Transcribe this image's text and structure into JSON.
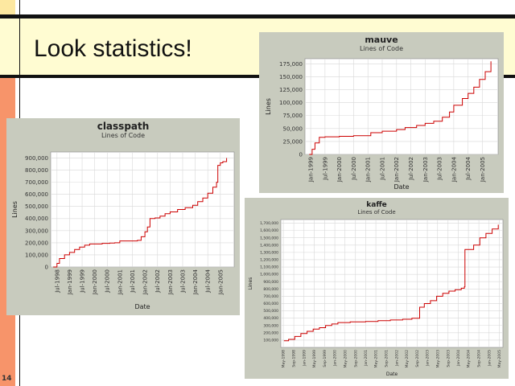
{
  "slide": {
    "title": "Look statistics!",
    "page_number": "14"
  },
  "chart_data": [
    {
      "id": "classpath",
      "type": "line",
      "title": "classpath",
      "subtitle": "Lines of Code",
      "xlabel": "Date",
      "ylabel": "Lines",
      "ylim": [
        0,
        950000
      ],
      "yticks": [
        0,
        100000,
        200000,
        300000,
        400000,
        500000,
        600000,
        700000,
        800000,
        900000
      ],
      "ytick_labels": [
        "0",
        "100,000",
        "200,000",
        "300,000",
        "400,000",
        "500,000",
        "600,000",
        "700,000",
        "800,000",
        "900,000"
      ],
      "xlim": [
        1998.25,
        2005.55
      ],
      "xticks": [
        1998.5,
        1999.0,
        1999.5,
        2000.0,
        2000.5,
        2001.0,
        2001.5,
        2002.0,
        2002.5,
        2003.0,
        2003.5,
        2004.0,
        2004.5,
        2005.0
      ],
      "xtick_labels": [
        "Jul-1998",
        "Jan-1999",
        "Jul-1999",
        "Jan-2000",
        "Jul-2000",
        "Jan-2001",
        "Jul-2001",
        "Jan-2002",
        "Jul-2002",
        "Jan-2003",
        "Jul-2003",
        "Jan-2004",
        "Jul-2004",
        "Jan-2005"
      ],
      "grid": true,
      "series": [
        {
          "color": "#cc0000",
          "x": [
            1998.35,
            1998.5,
            1998.6,
            1998.8,
            1999.0,
            1999.2,
            1999.4,
            1999.6,
            1999.8,
            2000.0,
            2000.3,
            2000.6,
            2000.8,
            2001.0,
            2001.2,
            2001.5,
            2001.7,
            2001.85,
            2002.0,
            2002.1,
            2002.2,
            2002.4,
            2002.6,
            2002.8,
            2003.0,
            2003.3,
            2003.6,
            2003.9,
            2004.1,
            2004.3,
            2004.5,
            2004.7,
            2004.85,
            2004.9,
            2005.0,
            2005.1,
            2005.25
          ],
          "y": [
            0,
            30000,
            70000,
            100000,
            120000,
            145000,
            165000,
            180000,
            190000,
            190000,
            195000,
            197000,
            200000,
            215000,
            215000,
            215000,
            220000,
            250000,
            290000,
            330000,
            400000,
            405000,
            420000,
            440000,
            455000,
            475000,
            490000,
            510000,
            540000,
            570000,
            610000,
            660000,
            700000,
            840000,
            860000,
            870000,
            900000
          ]
        }
      ]
    },
    {
      "id": "mauve",
      "type": "line",
      "title": "mauve",
      "subtitle": "Lines of Code",
      "xlabel": "Date",
      "ylabel": "Lines",
      "ylim": [
        0,
        185000
      ],
      "yticks": [
        0,
        25000,
        50000,
        75000,
        100000,
        125000,
        150000,
        175000
      ],
      "ytick_labels": [
        "0",
        "25,000",
        "50,000",
        "75,000",
        "100,000",
        "125,000",
        "150,000",
        "175,000"
      ],
      "xlim": [
        1998.8,
        2005.55
      ],
      "xticks": [
        1999.0,
        1999.5,
        2000.0,
        2000.5,
        2001.0,
        2001.5,
        2002.0,
        2002.5,
        2003.0,
        2003.5,
        2004.0,
        2004.5,
        2005.0
      ],
      "xtick_labels": [
        "Jan-1999",
        "Jul-1999",
        "Jan-2000",
        "Jul-2000",
        "Jan-2001",
        "Jul-2001",
        "Jan-2002",
        "Jul-2002",
        "Jan-2003",
        "Jul-2003",
        "Jan-2004",
        "Jul-2004",
        "Jan-2005"
      ],
      "grid": true,
      "series": [
        {
          "color": "#cc0000",
          "x": [
            1998.95,
            1999.05,
            1999.15,
            1999.3,
            1999.5,
            2000.0,
            2000.5,
            2001.0,
            2001.1,
            2001.5,
            2002.0,
            2002.3,
            2002.7,
            2003.0,
            2003.3,
            2003.6,
            2003.85,
            2004.0,
            2004.3,
            2004.5,
            2004.7,
            2004.9,
            2005.1,
            2005.3
          ],
          "y": [
            0,
            10000,
            22000,
            33000,
            34000,
            35000,
            36000,
            36000,
            42000,
            45000,
            48000,
            52000,
            56000,
            60000,
            64000,
            72000,
            82000,
            95000,
            108000,
            118000,
            130000,
            145000,
            160000,
            180000
          ]
        }
      ]
    },
    {
      "id": "kaffe",
      "type": "line",
      "title": "kaffe",
      "subtitle": "Lines of Code",
      "xlabel": "Date",
      "ylabel": "Lines",
      "ylim": [
        0,
        1750000
      ],
      "yticks": [
        100000,
        200000,
        300000,
        400000,
        500000,
        600000,
        700000,
        800000,
        900000,
        1000000,
        1100000,
        1200000,
        1300000,
        1400000,
        1500000,
        1600000,
        1700000
      ],
      "ytick_labels": [
        "100,000",
        "200,000",
        "300,000",
        "400,000",
        "500,000",
        "600,000",
        "700,000",
        "800,000",
        "900,000",
        "1,000,000",
        "1,100,000",
        "1,200,000",
        "1,300,000",
        "1,400,000",
        "1,500,000",
        "1,600,000",
        "1,700,000"
      ],
      "xlim": [
        1998.25,
        2005.45
      ],
      "xticks": [
        1998.33,
        1998.67,
        1999.0,
        1999.33,
        1999.67,
        2000.0,
        2000.33,
        2000.67,
        2001.0,
        2001.33,
        2001.67,
        2002.0,
        2002.33,
        2002.67,
        2003.0,
        2003.33,
        2003.67,
        2004.0,
        2004.33,
        2004.67,
        2005.0,
        2005.33
      ],
      "xtick_labels": [
        "May-1998",
        "Sep-1998",
        "Jan-1999",
        "May-1999",
        "Sep-1999",
        "Jan-2000",
        "May-2000",
        "Sep-2000",
        "Jan-2001",
        "May-2001",
        "Sep-2001",
        "Jan-2002",
        "May-2002",
        "Sep-2002",
        "Jan-2003",
        "May-2003",
        "Sep-2003",
        "Jan-2004",
        "May-2004",
        "Sep-2004",
        "Jan-2005",
        "May-2005"
      ],
      "grid": true,
      "series": [
        {
          "color": "#cc0000",
          "x": [
            1998.35,
            1998.5,
            1998.7,
            1998.9,
            1999.1,
            1999.3,
            1999.5,
            1999.7,
            1999.9,
            2000.1,
            2000.5,
            2001.0,
            2001.4,
            2001.8,
            2002.2,
            2002.5,
            2002.7,
            2002.75,
            2002.9,
            2003.1,
            2003.3,
            2003.5,
            2003.7,
            2003.9,
            2004.1,
            2004.2,
            2004.22,
            2004.5,
            2004.7,
            2004.9,
            2005.1,
            2005.3
          ],
          "y": [
            90000,
            110000,
            150000,
            190000,
            220000,
            250000,
            270000,
            300000,
            320000,
            340000,
            350000,
            355000,
            365000,
            375000,
            385000,
            400000,
            400000,
            550000,
            600000,
            640000,
            700000,
            740000,
            770000,
            790000,
            810000,
            830000,
            1340000,
            1400000,
            1500000,
            1560000,
            1620000,
            1680000
          ]
        }
      ]
    }
  ]
}
